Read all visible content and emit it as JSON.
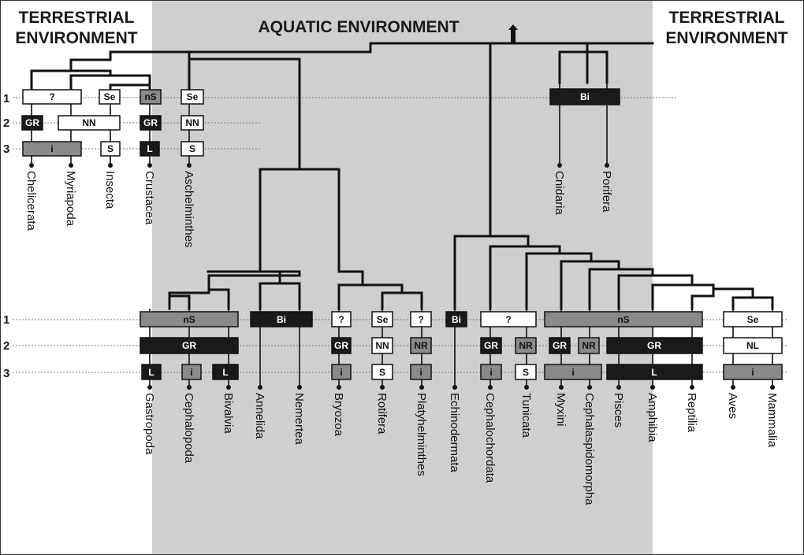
{
  "regions": {
    "left_title_line1": "TERRESTRIAL",
    "left_title_line2": "ENVIRONMENT",
    "center_title": "AQUATIC ENVIRONMENT",
    "right_title_line1": "TERRESTRIAL",
    "right_title_line2": "ENVIRONMENT"
  },
  "row_labels": [
    "1",
    "2",
    "3"
  ],
  "taxa": [
    "Chelicerata",
    "Myriapoda",
    "Insecta",
    "Crustacea",
    "Aschelminthes",
    "Cnidaria",
    "Porifera",
    "Gastropoda",
    "Cephalopoda",
    "Bivalvia",
    "Annelida",
    "Nemertea",
    "Bryozoa",
    "Rotifera",
    "Platyhelminthes",
    "Echinodermata",
    "Cephalochordata",
    "Tunicata",
    "Myxini",
    "Cephalaspidomorpha",
    "Pisces",
    "Amphibia",
    "Reptilia",
    "Aves",
    "Mammalia"
  ],
  "boxes": [
    {
      "label": "?",
      "style": "white"
    },
    {
      "label": "Se",
      "style": "white"
    },
    {
      "label": "nS",
      "style": "gray"
    },
    {
      "label": "Se",
      "style": "white"
    },
    {
      "label": "Bi",
      "style": "black"
    },
    {
      "label": "GR",
      "style": "black"
    },
    {
      "label": "NN",
      "style": "white"
    },
    {
      "label": "GR",
      "style": "black"
    },
    {
      "label": "NN",
      "style": "white"
    },
    {
      "label": "i",
      "style": "gray"
    },
    {
      "label": "S",
      "style": "white"
    },
    {
      "label": "L",
      "style": "black"
    },
    {
      "label": "S",
      "style": "white"
    },
    {
      "label": "nS",
      "style": "gray"
    },
    {
      "label": "Bi",
      "style": "black"
    },
    {
      "label": "?",
      "style": "white"
    },
    {
      "label": "Se",
      "style": "white"
    },
    {
      "label": "?",
      "style": "white"
    },
    {
      "label": "Bi",
      "style": "black"
    },
    {
      "label": "?",
      "style": "white"
    },
    {
      "label": "nS",
      "style": "gray"
    },
    {
      "label": "Se",
      "style": "white"
    },
    {
      "label": "GR",
      "style": "black"
    },
    {
      "label": "GR",
      "style": "black"
    },
    {
      "label": "NN",
      "style": "white"
    },
    {
      "label": "NR",
      "style": "gray"
    },
    {
      "label": "GR",
      "style": "black"
    },
    {
      "label": "NR",
      "style": "gray"
    },
    {
      "label": "GR",
      "style": "black"
    },
    {
      "label": "NR",
      "style": "gray"
    },
    {
      "label": "GR",
      "style": "black"
    },
    {
      "label": "NL",
      "style": "white"
    },
    {
      "label": "L",
      "style": "black"
    },
    {
      "label": "i",
      "style": "gray"
    },
    {
      "label": "L",
      "style": "black"
    },
    {
      "label": "i",
      "style": "gray"
    },
    {
      "label": "S",
      "style": "white"
    },
    {
      "label": "i",
      "style": "gray"
    },
    {
      "label": "i",
      "style": "gray"
    },
    {
      "label": "S",
      "style": "white"
    },
    {
      "label": "i",
      "style": "gray"
    },
    {
      "label": "L",
      "style": "black"
    },
    {
      "label": "i",
      "style": "gray"
    }
  ],
  "colors": {
    "aquatic_background": "#cfcfcf",
    "black_box": "#1a1a1a",
    "gray_box": "#8a8a8a",
    "white_box": "#ffffff",
    "line": "#111111"
  }
}
